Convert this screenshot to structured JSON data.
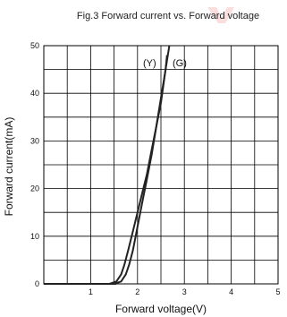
{
  "chart_data": {
    "type": "line",
    "title": "Fig.3 Forward current vs. Forward voltage",
    "xlabel": "Forward voltage(V)",
    "ylabel": "Forward current(mA)",
    "xlim": [
      0,
      5
    ],
    "ylim": [
      0,
      50
    ],
    "xticks": [
      "1",
      "2",
      "3",
      "4",
      "5"
    ],
    "yticks": [
      "0",
      "10",
      "20",
      "30",
      "40",
      "50"
    ],
    "grid": true,
    "series": [
      {
        "name": "(Y)",
        "x": [
          1.4,
          1.55,
          1.65,
          1.72,
          1.8,
          1.9,
          2.0,
          2.1,
          2.2,
          2.3,
          2.4,
          2.5,
          2.6,
          2.63
        ],
        "y": [
          0,
          0.5,
          2,
          4,
          7,
          11,
          15,
          19,
          23,
          28,
          33,
          38,
          45,
          48
        ]
      },
      {
        "name": "(G)",
        "x": [
          1.5,
          1.65,
          1.75,
          1.82,
          1.9,
          2.0,
          2.1,
          2.2,
          2.3,
          2.4,
          2.5,
          2.6,
          2.68
        ],
        "y": [
          0,
          0.5,
          2,
          4,
          7,
          12,
          17,
          22,
          27,
          33,
          39,
          45,
          50
        ]
      }
    ]
  }
}
